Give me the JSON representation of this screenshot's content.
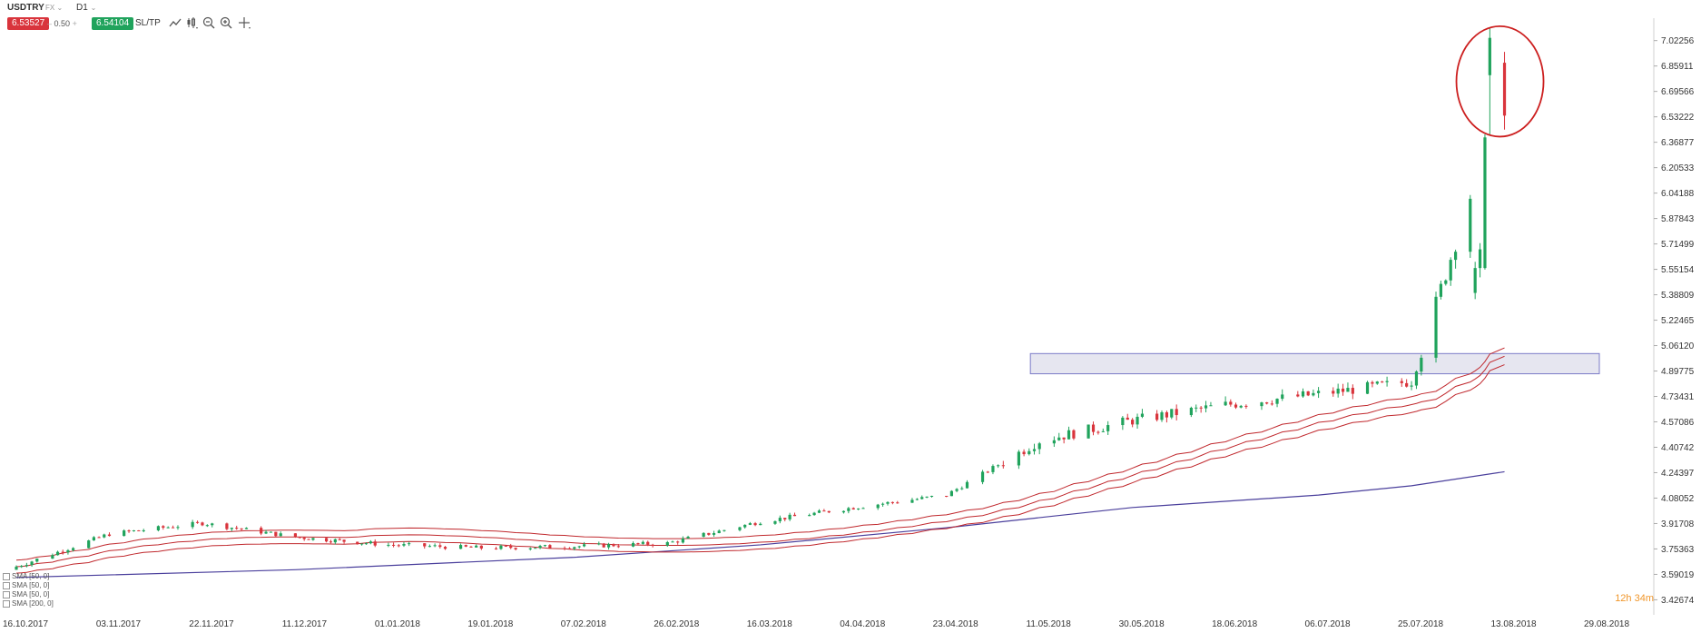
{
  "toolbar": {
    "symbol": "USDTRY",
    "market": "FX",
    "timeframe": "D1",
    "bid": "6.53527",
    "lot": "0.50",
    "ask": "6.54104",
    "sltp": "SL/TP",
    "icons": [
      "line-chart-icon",
      "candle-chart-icon",
      "zoom-out-icon",
      "zoom-in-icon",
      "crosshair-icon"
    ],
    "colors": {
      "bid": "#d9343c",
      "ask": "#20a35c"
    }
  },
  "legend": [
    "SMA [50, 0]",
    "SMA [50, 0]",
    "SMA [50, 0]",
    "SMA [200, 0]"
  ],
  "countdown": "12h 34m",
  "chart_data": {
    "type": "candlestick",
    "symbol": "USDTRY",
    "timeframe": "D1",
    "ylim": [
      3.4,
      7.12
    ],
    "y_ticks": [
      "7.02256",
      "6.85911",
      "6.69566",
      "6.53222",
      "6.36877",
      "6.20533",
      "6.04188",
      "5.87843",
      "5.71499",
      "5.55154",
      "5.38809",
      "5.22465",
      "5.06120",
      "4.89775",
      "4.73431",
      "4.57086",
      "4.40742",
      "4.24397",
      "4.08052",
      "3.91708",
      "3.75363",
      "3.59019",
      "3.42674"
    ],
    "x_ticks": [
      "16.10.2017",
      "03.11.2017",
      "22.11.2017",
      "11.12.2017",
      "01.01.2018",
      "19.01.2018",
      "07.02.2018",
      "26.02.2018",
      "16.03.2018",
      "04.04.2018",
      "23.04.2018",
      "11.05.2018",
      "30.05.2018",
      "18.06.2018",
      "06.07.2018",
      "25.07.2018",
      "13.08.2018",
      "29.08.2018"
    ],
    "colors": {
      "up": "#20a35c",
      "down": "#d9343c",
      "ma": "#c0282d",
      "sma200": "#4a3f9c",
      "zone_fill": "#e6e6f0",
      "zone_border": "#7b7bc8",
      "circle": "#cc1e1e"
    },
    "close_anchors": [
      [
        "16.10.2017",
        3.64
      ],
      [
        "03.11.2017",
        3.85
      ],
      [
        "22.11.2017",
        3.92
      ],
      [
        "11.12.2017",
        3.83
      ],
      [
        "01.01.2018",
        3.78
      ],
      [
        "19.01.2018",
        3.76
      ],
      [
        "07.02.2018",
        3.77
      ],
      [
        "26.02.2018",
        3.79
      ],
      [
        "16.03.2018",
        3.93
      ],
      [
        "04.04.2018",
        4.02
      ],
      [
        "23.04.2018",
        4.1
      ],
      [
        "11.05.2018",
        4.45
      ],
      [
        "30.05.2018",
        4.58
      ],
      [
        "18.06.2018",
        4.68
      ],
      [
        "06.07.2018",
        4.75
      ],
      [
        "25.07.2018",
        4.83
      ],
      [
        "10.08.2018",
        6.42
      ],
      [
        "13.08.2018",
        6.54
      ]
    ],
    "sma200": [
      [
        "16.10.2017",
        3.57
      ],
      [
        "11.12.2017",
        3.62
      ],
      [
        "07.02.2018",
        3.7
      ],
      [
        "16.03.2018",
        3.78
      ],
      [
        "23.04.2018",
        3.89
      ],
      [
        "30.05.2018",
        4.02
      ],
      [
        "06.07.2018",
        4.1
      ],
      [
        "25.07.2018",
        4.16
      ],
      [
        "13.08.2018",
        4.25
      ]
    ],
    "resistance_zone": {
      "from": "11.05.2018",
      "to": "29.08.2018",
      "low": 4.88,
      "high": 5.01
    },
    "highlight": {
      "date": "13.08.2018",
      "low": 6.44,
      "high": 7.08
    }
  }
}
